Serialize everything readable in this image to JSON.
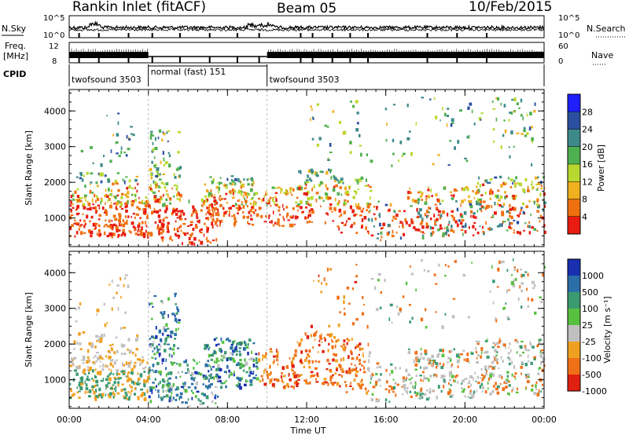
{
  "header": {
    "station": "Rankin Inlet (fitACF)",
    "beam": "Beam 05",
    "date": "10/Feb/2015"
  },
  "top_panels": {
    "nsky_label": "N.Sky",
    "nsearch_label": "N.Search",
    "nsky_ticks": [
      "10^5",
      "10^0"
    ],
    "nsearch_ticks": [
      "10^5",
      "10^0"
    ],
    "freq_label_1": "Freq.",
    "freq_label_2": "[MHz]",
    "freq_ticks": [
      "12",
      "8"
    ],
    "nave_label": "Nave",
    "nave_ticks": [
      "60",
      "0"
    ],
    "cpid_label": "CPID",
    "cpid_segments": [
      {
        "label": "twofsound 3503",
        "start_h": 0.0,
        "end_h": 4.0
      },
      {
        "label": "normal (fast) 151",
        "start_h": 4.0,
        "end_h": 10.0
      },
      {
        "label": "twofsound 3503",
        "start_h": 10.0,
        "end_h": 24.0
      }
    ]
  },
  "chart_data": [
    {
      "type": "heatmap",
      "name": "power",
      "ylabel": "Slant Range [km]",
      "yticks": [
        1000,
        2000,
        3000,
        4000
      ],
      "ylim": [
        200,
        4600
      ],
      "xlim": [
        0,
        24
      ],
      "colorbar_label": "Power [dB]",
      "colorbar_ticks": [
        4,
        8,
        12,
        16,
        20,
        24,
        28
      ],
      "colorbar_colors": [
        "#1f1fff",
        "#2b4fa0",
        "#3e8a8a",
        "#4fb04f",
        "#b8d830",
        "#f0b020",
        "#f07010",
        "#e81c10"
      ]
    },
    {
      "type": "heatmap",
      "name": "velocity",
      "ylabel": "Slant Range [km]",
      "yticks": [
        1000,
        2000,
        3000,
        4000
      ],
      "ylim": [
        200,
        4600
      ],
      "xlim": [
        0,
        24
      ],
      "colorbar_label": "Velocity [m s⁻¹]",
      "colorbar_ticks": [
        "1000",
        "500",
        "100",
        "25",
        "-25",
        "-100",
        "-500",
        "-1000"
      ],
      "colorbar_colors": [
        "#1830b0",
        "#2a6fa8",
        "#3a9a70",
        "#58c040",
        "#c0c0c0",
        "#f0a020",
        "#f07018",
        "#e02010"
      ]
    }
  ],
  "xaxis": {
    "ticks": [
      "00:00",
      "04:00",
      "08:00",
      "12:00",
      "16:00",
      "20:00",
      "00:00"
    ],
    "label": "Time UT"
  }
}
